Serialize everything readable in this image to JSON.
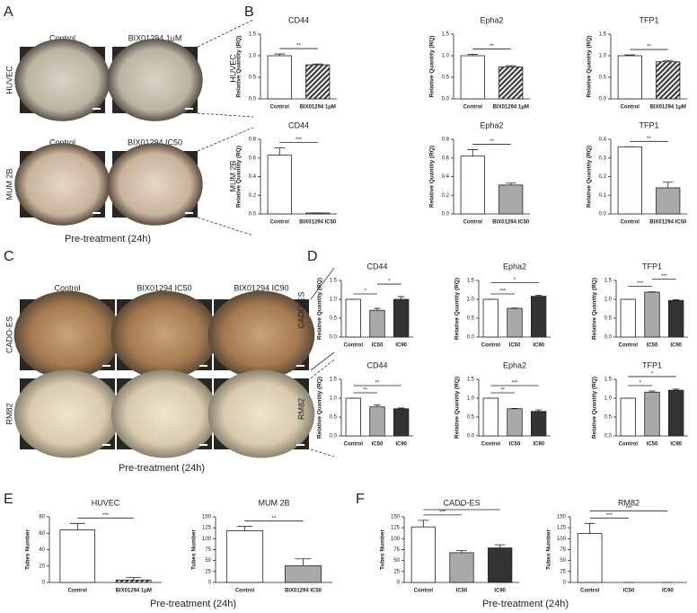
{
  "panels": {
    "A": {
      "letter": "A",
      "rows": [
        {
          "label": "HUVEC",
          "columns": [
            "Control",
            "BIX01294 1μM"
          ]
        },
        {
          "label": "MUM 2B",
          "columns": [
            "Control",
            "BIX01294 IC50"
          ]
        }
      ],
      "caption": "Pre-treatment (24h)"
    },
    "B": {
      "letter": "B",
      "rows": [
        "HUVEC",
        "MUM 2B"
      ]
    },
    "C": {
      "letter": "C",
      "columns": [
        "Control",
        "BIX01294  IC50",
        "BIX01294  IC90"
      ],
      "rows": [
        "CADO-ES",
        "RM82"
      ],
      "caption": "Pre-treatment (24h)"
    },
    "D": {
      "letter": "D",
      "rows": [
        "CADO-ES",
        "RM82"
      ]
    },
    "E": {
      "letter": "E",
      "caption": "Pre-treatment (24h)"
    },
    "F": {
      "letter": "F",
      "caption": "Pre-treatment (24h)"
    }
  },
  "chart_data": [
    {
      "type": "bar",
      "title": "CD44",
      "ylabel": "Relative Quantity (RQ)",
      "categories": [
        "Control",
        "BIX01294 1μM"
      ],
      "values": [
        1.0,
        0.79
      ],
      "errors": [
        0.04,
        0.02
      ],
      "colors": [
        "#ffffff",
        "#3c3c3c"
      ],
      "hatch": [
        false,
        true
      ],
      "ylim": [
        0,
        1.5
      ],
      "yticks": [
        {
          "value": 0,
          "label": "0.0"
        },
        0.5,
        {
          "value": 1,
          "label": "1.0"
        },
        1.5
      ],
      "significance": [
        {
          "pair": [
            0,
            1
          ],
          "label": "**"
        }
      ]
    },
    {
      "type": "bar",
      "title": "Epha2",
      "ylabel": "Relative Quantity (RQ)",
      "categories": [
        "Control",
        "BIX01294 1μM"
      ],
      "values": [
        1.0,
        0.74
      ],
      "errors": [
        0.03,
        0.03
      ],
      "colors": [
        "#ffffff",
        "#3c3c3c"
      ],
      "hatch": [
        false,
        true
      ],
      "ylim": [
        0,
        1.5
      ],
      "yticks": [
        {
          "value": 0,
          "label": "0.0"
        },
        0.5,
        {
          "value": 1,
          "label": "1.0"
        },
        1.5
      ],
      "significance": [
        {
          "pair": [
            0,
            1
          ],
          "label": "**"
        }
      ]
    },
    {
      "type": "bar",
      "title": "TFP1",
      "ylabel": "Relative Quantity (RQ)",
      "categories": [
        "Control",
        "BIX01294 1μM"
      ],
      "values": [
        1.0,
        0.86
      ],
      "errors": [
        0.02,
        0.03
      ],
      "colors": [
        "#ffffff",
        "#3c3c3c"
      ],
      "hatch": [
        false,
        true
      ],
      "ylim": [
        0,
        1.5
      ],
      "yticks": [
        {
          "value": 0,
          "label": "0.0"
        },
        0.5,
        {
          "value": 1,
          "label": "1.0"
        },
        1.5
      ],
      "significance": [
        {
          "pair": [
            0,
            1
          ],
          "label": "**"
        }
      ]
    },
    {
      "type": "bar",
      "title": "CD44",
      "ylabel": "Relative Quantity (RQ)",
      "categories": [
        "Control",
        "BIX01294 IC50"
      ],
      "values": [
        0.63,
        0.01
      ],
      "errors": [
        0.08,
        0.0
      ],
      "colors": [
        "#ffffff",
        "#a9a9a9"
      ],
      "hatch": [
        false,
        false
      ],
      "ylim": [
        0,
        0.8
      ],
      "yticks": [
        {
          "value": 0,
          "label": "0.0"
        },
        0.2,
        0.4,
        0.6,
        0.8
      ],
      "significance": [
        {
          "pair": [
            0,
            1
          ],
          "label": "***"
        }
      ]
    },
    {
      "type": "bar",
      "title": "Epha2",
      "ylabel": "Relative Quantity (RQ)",
      "categories": [
        "Control",
        "BIX01294 IC50"
      ],
      "values": [
        0.62,
        0.31
      ],
      "errors": [
        0.07,
        0.02
      ],
      "colors": [
        "#ffffff",
        "#a9a9a9"
      ],
      "hatch": [
        false,
        false
      ],
      "ylim": [
        0,
        0.8
      ],
      "yticks": [
        {
          "value": 0,
          "label": "0.0"
        },
        0.2,
        0.4,
        0.6,
        0.8
      ],
      "significance": [
        {
          "pair": [
            0,
            1
          ],
          "label": "**"
        }
      ]
    },
    {
      "type": "bar",
      "title": "TFP1",
      "ylabel": "Relative Quantity (RQ)",
      "categories": [
        "Control",
        "BIX01294 IC50"
      ],
      "values": [
        0.36,
        0.14
      ],
      "errors": [
        0.0,
        0.03
      ],
      "colors": [
        "#ffffff",
        "#a9a9a9"
      ],
      "hatch": [
        false,
        false
      ],
      "ylim": [
        0,
        0.4
      ],
      "yticks": [
        {
          "value": 0,
          "label": "0.0"
        },
        0.1,
        0.2,
        0.3,
        0.4
      ],
      "significance": [
        {
          "pair": [
            0,
            1
          ],
          "label": "**"
        }
      ]
    },
    {
      "type": "bar",
      "title": "CD44",
      "ylabel": "Relative Quantity (RQ)",
      "categories": [
        "Control",
        "IC50",
        "IC90"
      ],
      "values": [
        1.0,
        0.71,
        1.0
      ],
      "errors": [
        0.0,
        0.05,
        0.07
      ],
      "colors": [
        "#ffffff",
        "#a9a9a9",
        "#333333"
      ],
      "hatch": [
        false,
        false,
        false
      ],
      "ylim": [
        0,
        1.5
      ],
      "yticks": [
        {
          "value": 0,
          "label": "0.0"
        },
        0.5,
        {
          "value": 1,
          "label": "1.0"
        },
        1.5
      ],
      "significance": [
        {
          "pair": [
            0,
            1
          ],
          "label": "*"
        },
        {
          "pair": [
            1,
            2
          ],
          "label": "*"
        }
      ]
    },
    {
      "type": "bar",
      "title": "Epha2",
      "ylabel": "Relative Quantity (RQ)",
      "categories": [
        "Control",
        "IC50",
        "IC90"
      ],
      "values": [
        1.0,
        0.76,
        1.08
      ],
      "errors": [
        0.0,
        0.01,
        0.03
      ],
      "colors": [
        "#ffffff",
        "#a9a9a9",
        "#333333"
      ],
      "hatch": [
        false,
        false,
        false
      ],
      "ylim": [
        0,
        1.5
      ],
      "yticks": [
        {
          "value": 0,
          "label": "0.0"
        },
        0.5,
        {
          "value": 1,
          "label": "1.0"
        },
        1.5
      ],
      "significance": [
        {
          "pair": [
            0,
            1
          ],
          "label": "***"
        },
        {
          "pair": [
            0,
            2
          ],
          "label": "*"
        }
      ]
    },
    {
      "type": "bar",
      "title": "TFP1",
      "ylabel": "Relative Quantity (RQ)",
      "categories": [
        "Control",
        "IC50",
        "IC90"
      ],
      "values": [
        1.0,
        1.19,
        0.97
      ],
      "errors": [
        0.0,
        0.01,
        0.02
      ],
      "colors": [
        "#ffffff",
        "#a9a9a9",
        "#333333"
      ],
      "hatch": [
        false,
        false,
        false
      ],
      "ylim": [
        0,
        1.5
      ],
      "yticks": [
        {
          "value": 0,
          "label": "0.0"
        },
        0.5,
        {
          "value": 1,
          "label": "1.0"
        },
        1.5
      ],
      "significance": [
        {
          "pair": [
            0,
            1
          ],
          "label": "***"
        },
        {
          "pair": [
            1,
            2
          ],
          "label": "***"
        }
      ]
    },
    {
      "type": "bar",
      "title": "CD44",
      "ylabel": "Relative Quantity (RQ)",
      "categories": [
        "Control",
        "IC50",
        "IC90"
      ],
      "values": [
        1.0,
        0.77,
        0.72
      ],
      "errors": [
        0.0,
        0.05,
        0.02
      ],
      "colors": [
        "#ffffff",
        "#a9a9a9",
        "#333333"
      ],
      "hatch": [
        false,
        false,
        false
      ],
      "ylim": [
        0,
        1.5
      ],
      "yticks": [
        {
          "value": 0,
          "label": "0.0"
        },
        0.5,
        {
          "value": 1,
          "label": "1.0"
        },
        1.5
      ],
      "significance": [
        {
          "pair": [
            0,
            1
          ],
          "label": "**"
        },
        {
          "pair": [
            0,
            2
          ],
          "label": "**"
        }
      ]
    },
    {
      "type": "bar",
      "title": "Epha2",
      "ylabel": "Relative Quantity (RQ)",
      "categories": [
        "Control",
        "IC50",
        "IC90"
      ],
      "values": [
        1.0,
        0.72,
        0.65
      ],
      "errors": [
        0.0,
        0.01,
        0.04
      ],
      "colors": [
        "#ffffff",
        "#a9a9a9",
        "#333333"
      ],
      "hatch": [
        false,
        false,
        false
      ],
      "ylim": [
        0,
        1.5
      ],
      "yticks": [
        {
          "value": 0,
          "label": "0.0"
        },
        0.5,
        {
          "value": 1,
          "label": "1.0"
        },
        1.5
      ],
      "significance": [
        {
          "pair": [
            0,
            1
          ],
          "label": "**"
        },
        {
          "pair": [
            0,
            2
          ],
          "label": "***"
        }
      ]
    },
    {
      "type": "bar",
      "title": "TFP1",
      "ylabel": "Relative Quantity (RQ)",
      "categories": [
        "Control",
        "IC50",
        "IC90"
      ],
      "values": [
        1.0,
        1.16,
        1.21
      ],
      "errors": [
        0.0,
        0.03,
        0.03
      ],
      "colors": [
        "#ffffff",
        "#a9a9a9",
        "#333333"
      ],
      "hatch": [
        false,
        false,
        false
      ],
      "ylim": [
        0,
        1.5
      ],
      "yticks": [
        {
          "value": 0,
          "label": "0.0"
        },
        0.5,
        {
          "value": 1,
          "label": "1.0"
        },
        1.5
      ],
      "significance": [
        {
          "pair": [
            0,
            1
          ],
          "label": "*"
        },
        {
          "pair": [
            0,
            2
          ],
          "label": "*"
        }
      ]
    },
    {
      "type": "bar",
      "title": "HUVEC",
      "ylabel": "Tubes Number",
      "categories": [
        "Control",
        "BIX01294 1μM"
      ],
      "values": [
        64,
        3
      ],
      "errors": [
        8,
        3
      ],
      "colors": [
        "#ffffff",
        "#3c3c3c"
      ],
      "hatch": [
        false,
        true
      ],
      "ylim": [
        0,
        80
      ],
      "yticks": [
        0,
        20,
        40,
        60,
        80
      ],
      "significance": [
        {
          "pair": [
            0,
            1
          ],
          "label": "***"
        }
      ]
    },
    {
      "type": "bar",
      "title": "MUM 2B",
      "ylabel": "Tubes Number",
      "categories": [
        "Control",
        "BIX01294 IC50"
      ],
      "values": [
        118,
        38
      ],
      "errors": [
        10,
        16
      ],
      "colors": [
        "#ffffff",
        "#a9a9a9"
      ],
      "hatch": [
        false,
        false
      ],
      "ylim": [
        0,
        150
      ],
      "yticks": [
        0,
        25,
        50,
        75,
        100,
        125,
        150
      ],
      "significance": [
        {
          "pair": [
            0,
            1
          ],
          "label": "**"
        }
      ]
    },
    {
      "type": "bar",
      "title": "CADO-ES",
      "ylabel": "Tubes Number",
      "categories": [
        "Control",
        "IC50",
        "IC90"
      ],
      "values": [
        127,
        68,
        79
      ],
      "errors": [
        15,
        5,
        7
      ],
      "colors": [
        "#ffffff",
        "#a9a9a9",
        "#333333"
      ],
      "hatch": [
        false,
        false,
        false
      ],
      "ylim": [
        0,
        150
      ],
      "yticks": [
        0,
        25,
        50,
        75,
        100,
        125,
        150
      ],
      "significance": [
        {
          "pair": [
            0,
            1
          ],
          "label": "***"
        },
        {
          "pair": [
            0,
            2
          ],
          "label": "**"
        }
      ]
    },
    {
      "type": "bar",
      "title": "RM82",
      "ylabel": "Tubes Number",
      "categories": [
        "Control",
        "IC50",
        "IC90"
      ],
      "values": [
        112,
        0,
        0
      ],
      "errors": [
        23,
        0,
        0
      ],
      "colors": [
        "#ffffff",
        "#a9a9a9",
        "#333333"
      ],
      "hatch": [
        false,
        false,
        false
      ],
      "ylim": [
        0,
        150
      ],
      "yticks": [
        0,
        25,
        50,
        75,
        100,
        125,
        150
      ],
      "significance": [
        {
          "pair": [
            0,
            1
          ],
          "label": "***"
        },
        {
          "pair": [
            0,
            2
          ],
          "label": "***"
        }
      ]
    }
  ]
}
